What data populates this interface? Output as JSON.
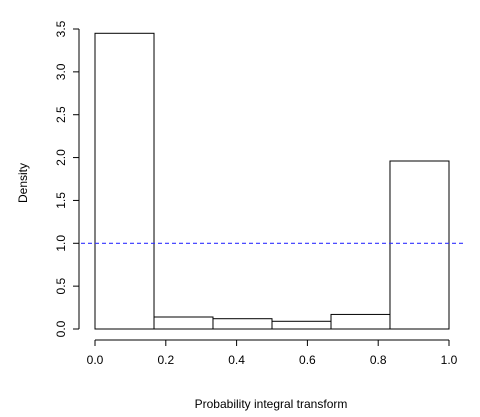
{
  "chart_data": {
    "type": "bar",
    "subtype": "histogram",
    "xlabel": "Probability integral transform",
    "ylabel": "Density",
    "bins": [
      {
        "start": 0.0,
        "end": 0.1667,
        "density": 3.45
      },
      {
        "start": 0.1667,
        "end": 0.3333,
        "density": 0.14
      },
      {
        "start": 0.3333,
        "end": 0.5,
        "density": 0.12
      },
      {
        "start": 0.5,
        "end": 0.6667,
        "density": 0.09
      },
      {
        "start": 0.6667,
        "end": 0.8333,
        "density": 0.17
      },
      {
        "start": 0.8333,
        "end": 1.0,
        "density": 1.96
      }
    ],
    "xlim": [
      0.0,
      1.0
    ],
    "ylim": [
      0.0,
      3.5
    ],
    "x_ticks": [
      "0.0",
      "0.2",
      "0.4",
      "0.6",
      "0.8",
      "1.0"
    ],
    "y_ticks": [
      "0.0",
      "0.5",
      "1.0",
      "1.5",
      "2.0",
      "2.5",
      "3.0",
      "3.5"
    ],
    "reference_line": {
      "y": 1.0,
      "style": "dashed",
      "color": "#3333ff"
    },
    "grid": false,
    "legend": false
  }
}
